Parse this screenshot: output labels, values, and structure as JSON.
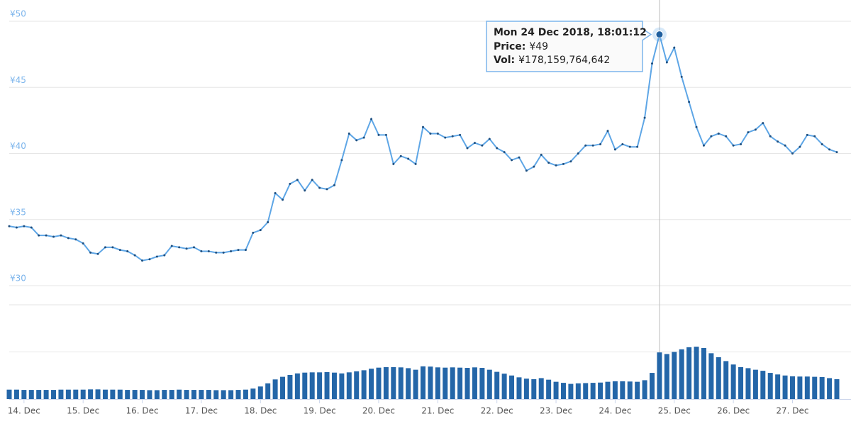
{
  "chart_data": {
    "type": "line",
    "x": [
      "2018-12-13T18:00",
      "2018-12-13T21:00",
      "2018-12-14T00:00",
      "2018-12-14T03:00",
      "2018-12-14T06:00",
      "2018-12-14T09:00",
      "2018-12-14T12:00",
      "2018-12-14T15:00",
      "2018-12-14T18:00",
      "2018-12-14T21:00",
      "2018-12-15T00:00",
      "2018-12-15T03:00",
      "2018-12-15T06:00",
      "2018-12-15T09:00",
      "2018-12-15T12:00",
      "2018-12-15T15:00",
      "2018-12-15T18:00",
      "2018-12-15T21:00",
      "2018-12-16T00:00",
      "2018-12-16T03:00",
      "2018-12-16T06:00",
      "2018-12-16T09:00",
      "2018-12-16T12:00",
      "2018-12-16T15:00",
      "2018-12-16T18:00",
      "2018-12-16T21:00",
      "2018-12-17T00:00",
      "2018-12-17T03:00",
      "2018-12-17T06:00",
      "2018-12-17T09:00",
      "2018-12-17T12:00",
      "2018-12-17T15:00",
      "2018-12-17T18:00",
      "2018-12-17T21:00",
      "2018-12-18T00:00",
      "2018-12-18T03:00",
      "2018-12-18T06:00",
      "2018-12-18T09:00",
      "2018-12-18T12:00",
      "2018-12-18T15:00",
      "2018-12-18T18:00",
      "2018-12-18T21:00",
      "2018-12-19T00:00",
      "2018-12-19T03:00",
      "2018-12-19T06:00",
      "2018-12-19T09:00",
      "2018-12-19T12:00",
      "2018-12-19T15:00",
      "2018-12-19T18:00",
      "2018-12-19T21:00",
      "2018-12-20T00:00",
      "2018-12-20T03:00",
      "2018-12-20T06:00",
      "2018-12-20T09:00",
      "2018-12-20T12:00",
      "2018-12-20T15:00",
      "2018-12-20T18:00",
      "2018-12-20T21:00",
      "2018-12-21T00:00",
      "2018-12-21T03:00",
      "2018-12-21T06:00",
      "2018-12-21T09:00",
      "2018-12-21T12:00",
      "2018-12-21T15:00",
      "2018-12-21T18:00",
      "2018-12-21T21:00",
      "2018-12-22T00:00",
      "2018-12-22T03:00",
      "2018-12-22T06:00",
      "2018-12-22T09:00",
      "2018-12-22T12:00",
      "2018-12-22T15:00",
      "2018-12-22T18:00",
      "2018-12-22T21:00",
      "2018-12-23T00:00",
      "2018-12-23T03:00",
      "2018-12-23T06:00",
      "2018-12-23T09:00",
      "2018-12-23T12:00",
      "2018-12-23T15:00",
      "2018-12-23T18:00",
      "2018-12-23T21:00",
      "2018-12-24T00:00",
      "2018-12-24T03:00",
      "2018-12-24T06:00",
      "2018-12-24T09:00",
      "2018-12-24T12:00",
      "2018-12-24T15:00",
      "2018-12-24T18:00",
      "2018-12-24T21:00",
      "2018-12-25T00:00",
      "2018-12-25T03:00",
      "2018-12-25T06:00",
      "2018-12-25T09:00",
      "2018-12-25T12:00",
      "2018-12-25T15:00",
      "2018-12-25T18:00",
      "2018-12-25T21:00",
      "2018-12-26T00:00",
      "2018-12-26T03:00",
      "2018-12-26T06:00",
      "2018-12-26T09:00",
      "2018-12-26T12:00",
      "2018-12-26T15:00",
      "2018-12-26T18:00",
      "2018-12-26T21:00",
      "2018-12-27T00:00",
      "2018-12-27T03:00",
      "2018-12-27T06:00",
      "2018-12-27T09:00",
      "2018-12-27T12:00",
      "2018-12-27T15:00",
      "2018-12-27T18:00"
    ],
    "series": [
      {
        "color": "#5ea6e6",
        "values": [
          34.5,
          34.4,
          34.5,
          34.4,
          33.8,
          33.8,
          33.7,
          33.8,
          33.6,
          33.5,
          33.2,
          32.5,
          32.4,
          32.9,
          32.9,
          32.7,
          32.6,
          32.3,
          31.9,
          32.0,
          32.2,
          32.3,
          33.0,
          32.9,
          32.8,
          32.9,
          32.6,
          32.6,
          32.5,
          32.5,
          32.6,
          32.7,
          32.7,
          34.0,
          34.2,
          34.8,
          37.0,
          36.5,
          37.7,
          38.0,
          37.2,
          38.0,
          37.4,
          37.3,
          37.6,
          39.5,
          41.5,
          41.0,
          41.2,
          42.6,
          41.4,
          41.4,
          39.2,
          39.8,
          39.6,
          39.2,
          42.0,
          41.5,
          41.5,
          41.2,
          41.3,
          41.4,
          40.4,
          40.8,
          40.6,
          41.1,
          40.4,
          40.1,
          39.5,
          39.7,
          38.7,
          39.0,
          39.9,
          39.3,
          39.1,
          39.2,
          39.4,
          40.0,
          40.6,
          40.6,
          40.7,
          41.7,
          40.3,
          40.7,
          40.5,
          40.5,
          42.7,
          46.8,
          49,
          46.9,
          48.0,
          45.8,
          43.9,
          42.0,
          40.6,
          41.3,
          41.5,
          41.3,
          40.6,
          40.7,
          41.6,
          41.8,
          42.3,
          41.3,
          40.9,
          40.6,
          40.0,
          40.5,
          41.4,
          41.3,
          40.7,
          40.3,
          40.1
        ]
      },
      {
        "type": "bar",
        "axis": "y2",
        "color": "#2466a8",
        "values": [
          36000000000.0,
          36000000000.0,
          35000000000.0,
          35000000000.0,
          35000000000.0,
          35000000000.0,
          35000000000.0,
          36000000000.0,
          36000000000.0,
          36000000000.0,
          36000000000.0,
          37000000000.0,
          37000000000.0,
          36000000000.0,
          36000000000.0,
          36000000000.0,
          35000000000.0,
          35000000000.0,
          35000000000.0,
          34000000000.0,
          34000000000.0,
          35000000000.0,
          35000000000.0,
          36000000000.0,
          35000000000.0,
          35000000000.0,
          35000000000.0,
          35000000000.0,
          34000000000.0,
          34000000000.0,
          34000000000.0,
          35000000000.0,
          36000000000.0,
          40000000000.0,
          48000000000.0,
          60000000000.0,
          75000000000.0,
          85000000000.0,
          92000000000.0,
          98000000000.0,
          101000000000.0,
          102000000000.0,
          102000000000.0,
          103000000000.0,
          101000000000.0,
          98000000000.0,
          102000000000.0,
          106000000000.0,
          110000000000.0,
          116000000000.0,
          120000000000.0,
          122000000000.0,
          122000000000.0,
          121000000000.0,
          118000000000.0,
          112000000000.0,
          125000000000.0,
          124000000000.0,
          121000000000.0,
          120000000000.0,
          121000000000.0,
          120000000000.0,
          119000000000.0,
          121000000000.0,
          119000000000.0,
          112000000000.0,
          104000000000.0,
          97000000000.0,
          90000000000.0,
          83000000000.0,
          78000000000.0,
          76000000000.0,
          80000000000.0,
          74000000000.0,
          66000000000.0,
          62000000000.0,
          58000000000.0,
          60000000000.0,
          61000000000.0,
          62000000000.0,
          63000000000.0,
          66000000000.0,
          68000000000.0,
          68000000000.0,
          67000000000.0,
          66000000000.0,
          72000000000.0,
          100000000000.0,
          178159764642,
          172000000000.0,
          180000000000.0,
          190000000000.0,
          198000000000.0,
          200000000000.0,
          195000000000.0,
          175000000000.0,
          160000000000.0,
          145000000000.0,
          132000000000.0,
          122000000000.0,
          118000000000.0,
          112000000000.0,
          108000000000.0,
          100000000000.0,
          94000000000.0,
          90000000000.0,
          87000000000.0,
          86000000000.0,
          86000000000.0,
          85000000000.0,
          84000000000.0,
          80000000000.0,
          76000000000.0
        ]
      }
    ],
    "xlim": [
      "2018-12-13T18:00",
      "2018-12-27T18:00"
    ],
    "xticks": [
      {
        "value": "2018-12-14T00:00",
        "label": "14. Dec"
      },
      {
        "value": "2018-12-15T00:00",
        "label": "15. Dec"
      },
      {
        "value": "2018-12-16T00:00",
        "label": "16. Dec"
      },
      {
        "value": "2018-12-17T00:00",
        "label": "17. Dec"
      },
      {
        "value": "2018-12-18T00:00",
        "label": "18. Dec"
      },
      {
        "value": "2018-12-19T00:00",
        "label": "19. Dec"
      },
      {
        "value": "2018-12-20T00:00",
        "label": "20. Dec"
      },
      {
        "value": "2018-12-21T00:00",
        "label": "21. Dec"
      },
      {
        "value": "2018-12-22T00:00",
        "label": "22. Dec"
      },
      {
        "value": "2018-12-23T00:00",
        "label": "23. Dec"
      },
      {
        "value": "2018-12-24T00:00",
        "label": "24. Dec"
      },
      {
        "value": "2018-12-25T00:00",
        "label": "25. Dec"
      },
      {
        "value": "2018-12-26T00:00",
        "label": "26. Dec"
      },
      {
        "value": "2018-12-27T00:00",
        "label": "27. Dec"
      }
    ],
    "ylim": [
      30,
      50
    ],
    "yticks": [
      {
        "value": 30,
        "label": "¥30"
      },
      {
        "value": 35,
        "label": "¥35"
      },
      {
        "value": 40,
        "label": "¥40"
      },
      {
        "value": 45,
        "label": "¥45"
      },
      {
        "value": 50,
        "label": "¥50"
      }
    ],
    "y2lim": [
      0,
      360000000000.0
    ],
    "y2ticks": [
      0,
      180000000000.0,
      360000000000.0
    ],
    "grid": true,
    "tooltip": {
      "x": "2018-12-24T18:01:12",
      "title": "Mon 24 Dec 2018, 18:01:12",
      "rows": [
        {
          "label": "Price:",
          "value": "¥49"
        },
        {
          "label": "Vol:",
          "value": "¥178,159,764,642"
        }
      ]
    }
  }
}
